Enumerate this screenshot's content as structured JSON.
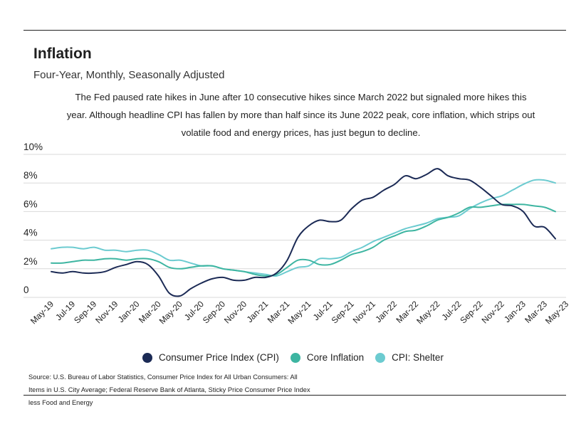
{
  "title": "Inflation",
  "subtitle": "Four-Year, Monthly, Seasonally Adjusted",
  "description": "The Fed paused rate hikes in June after 10 consecutive hikes since March 2022 but signaled more hikes this year. Although headline CPI has fallen by more than half since its June 2022 peak, core inflation, which strips out volatile food and energy prices, has just begun to decline.",
  "source": "Source:  U.S. Bureau of Labor Statistics, Consumer Price Index for All Urban Consumers: All Items in U.S. City Average; Federal Reserve Bank of Atlanta, Sticky Price Consumer Price Index less Food and Energy",
  "chart_data": {
    "type": "line",
    "title": "Inflation",
    "ylim": [
      0,
      10
    ],
    "y_ticks": [
      0,
      2,
      4,
      6,
      8,
      10
    ],
    "y_tick_labels": [
      "0",
      "2%",
      "4%",
      "6%",
      "8%",
      "10%"
    ],
    "x_tick_labels": [
      "May-19",
      "Jul-19",
      "Sep-19",
      "Nov-19",
      "Jan-20",
      "Mar-20",
      "May-20",
      "Jul-20",
      "Sep-20",
      "Nov-20",
      "Jan-21",
      "Mar-21",
      "May-21",
      "Jul-21",
      "Sep-21",
      "Nov-21",
      "Jan-22",
      "Mar-22",
      "May-22",
      "Jul-22",
      "Sep-22",
      "Nov-22",
      "Jan-23",
      "Mar-23",
      "May-23"
    ],
    "grid": true,
    "legend_position": "bottom-center",
    "series": [
      {
        "name": "Consumer Price Index (CPI)",
        "color": "#1b2a55",
        "values": [
          1.8,
          1.7,
          1.8,
          1.7,
          1.7,
          1.8,
          2.1,
          2.3,
          2.5,
          2.3,
          1.5,
          0.3,
          0.1,
          0.6,
          1.0,
          1.3,
          1.4,
          1.2,
          1.2,
          1.4,
          1.4,
          1.7,
          2.6,
          4.2,
          5.0,
          5.4,
          5.3,
          5.4,
          6.2,
          6.8,
          7.0,
          7.5,
          7.9,
          8.5,
          8.3,
          8.6,
          9.0,
          8.5,
          8.3,
          8.2,
          7.7,
          7.1,
          6.5,
          6.4,
          6.0,
          5.0,
          4.9,
          4.1
        ]
      },
      {
        "name": "Core Inflation",
        "color": "#3db5a1",
        "values": [
          2.4,
          2.4,
          2.5,
          2.6,
          2.6,
          2.7,
          2.7,
          2.6,
          2.7,
          2.7,
          2.5,
          2.1,
          2.0,
          2.1,
          2.2,
          2.2,
          2.0,
          1.9,
          1.8,
          1.6,
          1.5,
          1.6,
          2.1,
          2.6,
          2.6,
          2.3,
          2.3,
          2.6,
          3.0,
          3.2,
          3.5,
          4.0,
          4.3,
          4.6,
          4.7,
          5.0,
          5.4,
          5.6,
          5.9,
          6.3,
          6.3,
          6.4,
          6.5,
          6.5,
          6.5,
          6.4,
          6.3,
          6.0
        ]
      },
      {
        "name": "CPI: Shelter",
        "color": "#6ccbd0",
        "values": [
          3.4,
          3.5,
          3.5,
          3.4,
          3.5,
          3.3,
          3.3,
          3.2,
          3.3,
          3.3,
          3.0,
          2.6,
          2.6,
          2.4,
          2.2,
          2.2,
          2.0,
          1.9,
          1.8,
          1.7,
          1.6,
          1.5,
          1.8,
          2.1,
          2.2,
          2.7,
          2.7,
          2.8,
          3.2,
          3.5,
          3.9,
          4.2,
          4.5,
          4.8,
          5.0,
          5.2,
          5.5,
          5.6,
          5.7,
          6.2,
          6.6,
          6.9,
          7.1,
          7.5,
          7.9,
          8.2,
          8.2,
          8.0
        ]
      }
    ]
  }
}
